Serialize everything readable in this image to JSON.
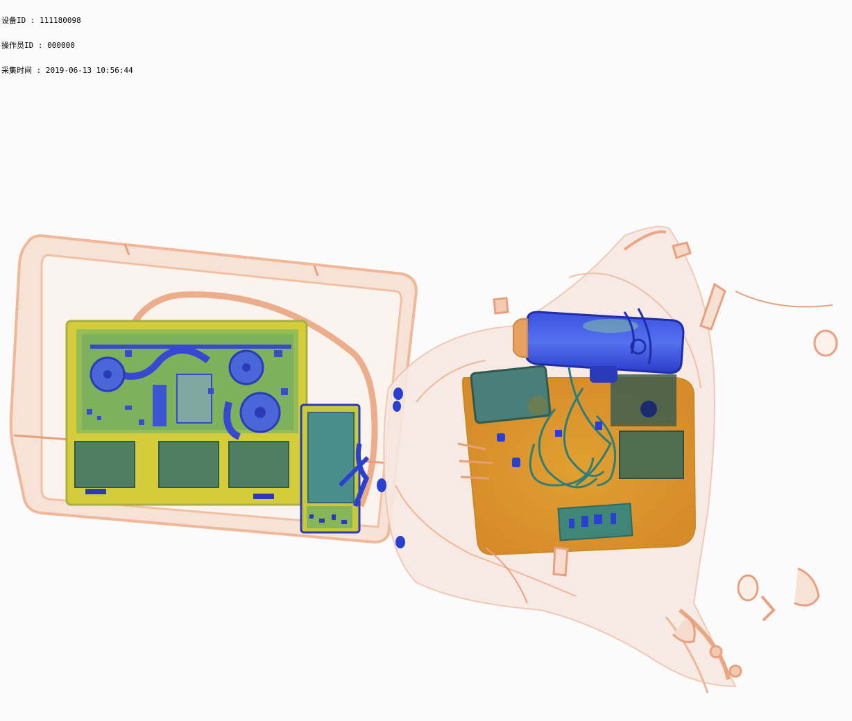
{
  "overlay": {
    "device_id_line": "设备ID : 111180098",
    "operator_id_line": "操作员ID : 000000",
    "capture_time_line": "采集时间 : 2019-06-13 10:56:44"
  },
  "colors": {
    "background": "#fbfbfb",
    "organic_orange": "#e8956a",
    "organic_light": "#f6d8c8",
    "mixed_yellow": "#d9c43a",
    "green": "#7fb050",
    "metal_blue": "#2a3fd0",
    "dense_teal": "#3f7f80",
    "bag_orange": "#d99a2b"
  }
}
